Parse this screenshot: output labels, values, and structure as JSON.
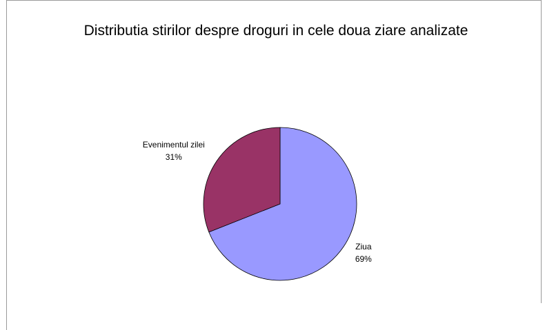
{
  "chart_data": {
    "type": "pie",
    "title": "Distributia stirilor despre droguri in cele doua ziare analizate",
    "categories": [
      "Ziua",
      "Evenimentul zilei"
    ],
    "values": [
      69,
      31
    ],
    "value_labels": [
      "69%",
      "31%"
    ],
    "colors": [
      "#9999ff",
      "#993366"
    ]
  }
}
